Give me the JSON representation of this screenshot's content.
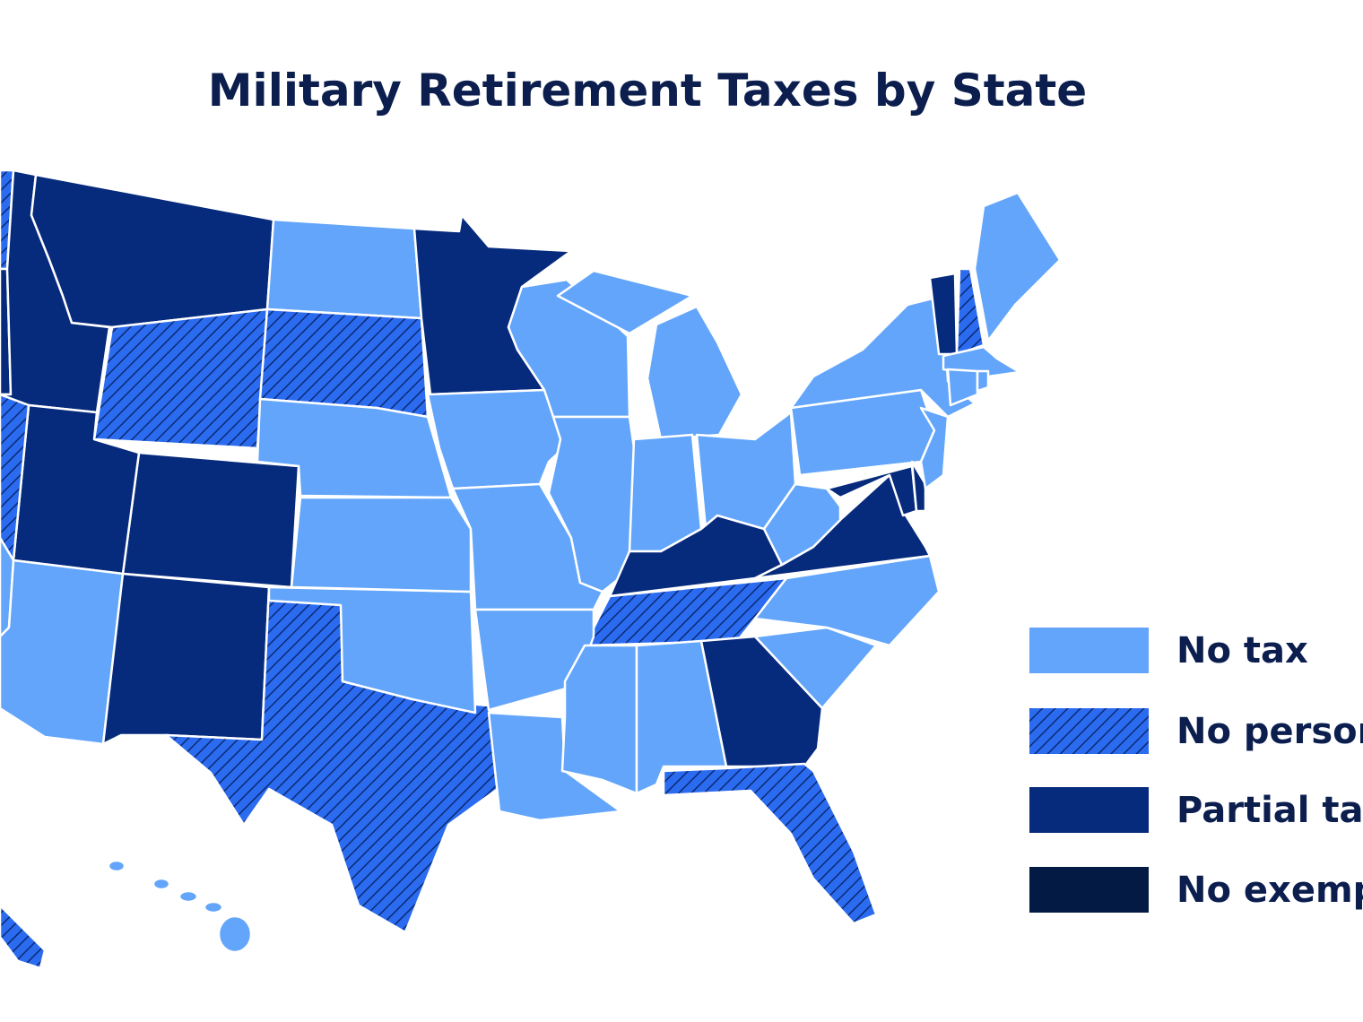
{
  "title": "Military Retirement Taxes by State",
  "legend": [
    {
      "label": "No tax",
      "color": "#62a5fa"
    },
    {
      "label": "No person",
      "color": "#2b6bf0",
      "pattern": "hatch",
      "hatch_color": "#0b2a72"
    },
    {
      "label": "Partial ta",
      "color": "#062a7c"
    },
    {
      "label": "No exemp",
      "color": "#031a45"
    }
  ]
}
